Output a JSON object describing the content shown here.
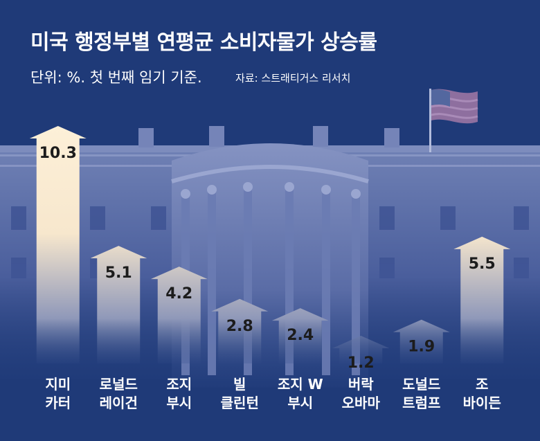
{
  "header": {
    "title": "미국 행정부별 연평균 소비자물가 상승률",
    "subtitle": "단위: %. 첫 번째 임기 기준.",
    "source": "자료: 스트래티거스 리서치"
  },
  "colors": {
    "background": "#1f3a78",
    "arrow_fill": "#fdf0d8",
    "arrow_fade": "#1f3a78",
    "label": "#ffffff"
  },
  "chart_data": {
    "type": "bar",
    "style": "upward arrows",
    "title": "미국 행정부별 연평균 소비자물가 상승률",
    "unit": "%",
    "categories": [
      [
        "지미",
        "카터"
      ],
      [
        "로널드",
        "레이건"
      ],
      [
        "조지",
        "부시"
      ],
      [
        "빌",
        "클린턴"
      ],
      [
        "조지 W",
        "부시"
      ],
      [
        "버락",
        "오바마"
      ],
      [
        "도널드",
        "트럼프"
      ],
      [
        "조",
        "바이든"
      ]
    ],
    "values": [
      10.3,
      5.1,
      4.2,
      2.8,
      2.4,
      1.2,
      1.9,
      5.5
    ],
    "value_labels": [
      "10.3",
      "5.1",
      "4.2",
      "2.8",
      "2.4",
      "1.2",
      "1.9",
      "5.5"
    ],
    "xlabel": "",
    "ylabel": "",
    "grid": false,
    "legend": "none"
  }
}
